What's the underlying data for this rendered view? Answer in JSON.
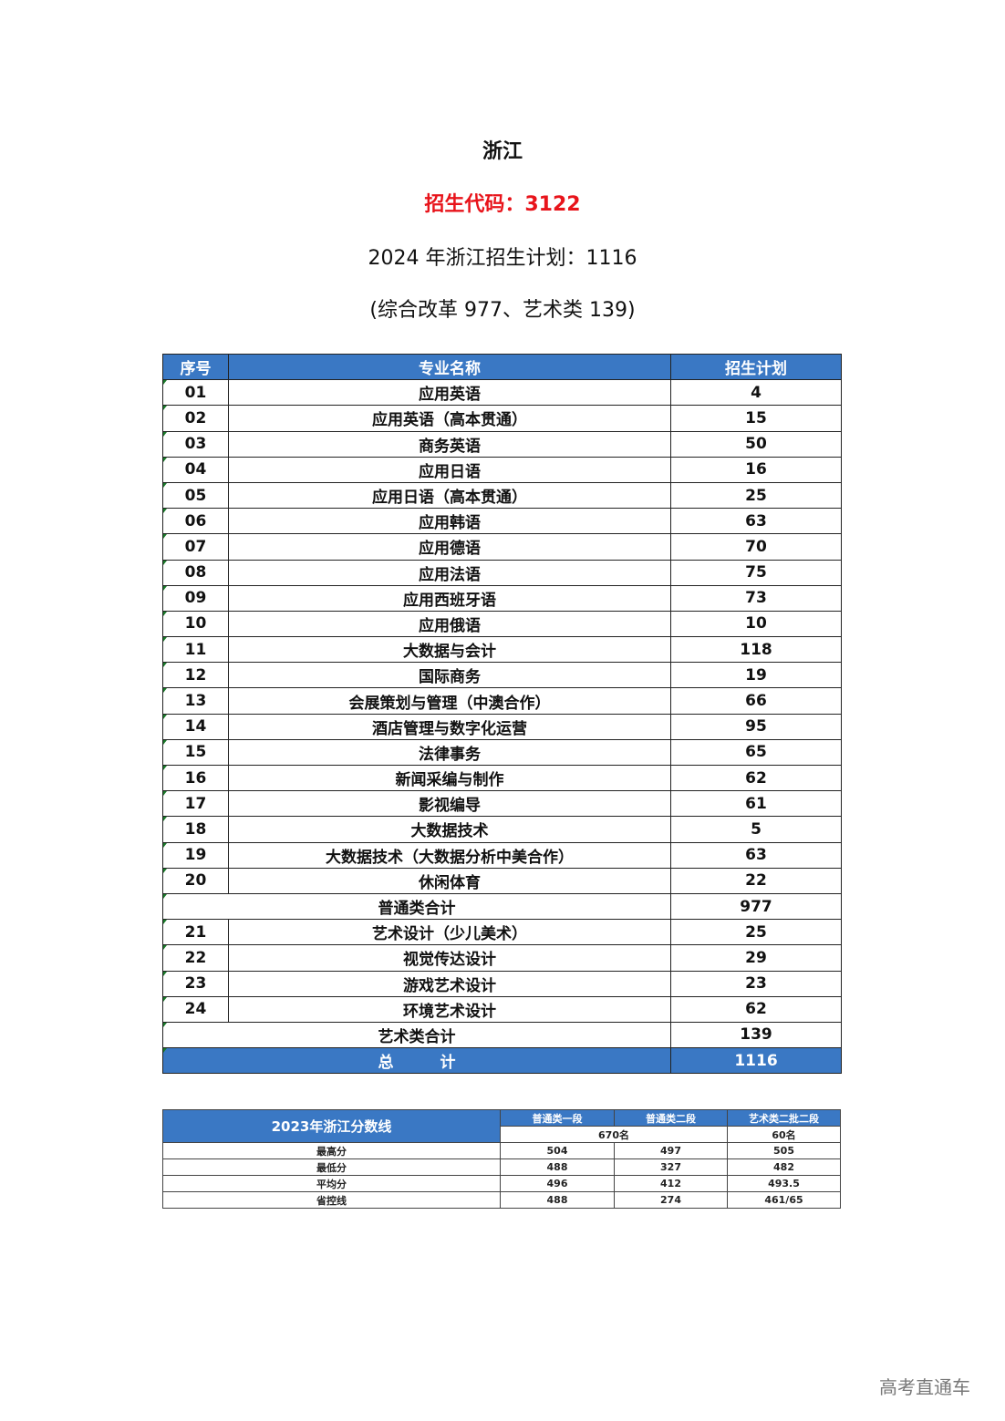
{
  "header": {
    "province": "浙江",
    "code_line": "招生代码：3122",
    "plan_line": "2024 年浙江招生计划：1116",
    "breakdown_line": "(综合改革 977、艺术类 139)"
  },
  "plan_table": {
    "columns": [
      "序号",
      "专业名称",
      "招生计划"
    ],
    "rows": [
      [
        "01",
        "应用英语",
        "4"
      ],
      [
        "02",
        "应用英语（高本贯通）",
        "15"
      ],
      [
        "03",
        "商务英语",
        "50"
      ],
      [
        "04",
        "应用日语",
        "16"
      ],
      [
        "05",
        "应用日语（高本贯通）",
        "25"
      ],
      [
        "06",
        "应用韩语",
        "63"
      ],
      [
        "07",
        "应用德语",
        "70"
      ],
      [
        "08",
        "应用法语",
        "75"
      ],
      [
        "09",
        "应用西班牙语",
        "73"
      ],
      [
        "10",
        "应用俄语",
        "10"
      ],
      [
        "11",
        "大数据与会计",
        "118"
      ],
      [
        "12",
        "国际商务",
        "19"
      ],
      [
        "13",
        "会展策划与管理（中澳合作）",
        "66"
      ],
      [
        "14",
        "酒店管理与数字化运营",
        "95"
      ],
      [
        "15",
        "法律事务",
        "65"
      ],
      [
        "16",
        "新闻采编与制作",
        "62"
      ],
      [
        "17",
        "影视编导",
        "61"
      ],
      [
        "18",
        "大数据技术",
        "5"
      ],
      [
        "19",
        "大数据技术（大数据分析中美合作）",
        "63"
      ],
      [
        "20",
        "休闲体育",
        "22"
      ]
    ],
    "subtotal_general": {
      "label": "普通类合计",
      "value": "977"
    },
    "art_rows": [
      [
        "21",
        "艺术设计（少儿美术）",
        "25"
      ],
      [
        "22",
        "视觉传达设计",
        "29"
      ],
      [
        "23",
        "游戏艺术设计",
        "23"
      ],
      [
        "24",
        "环境艺术设计",
        "62"
      ]
    ],
    "subtotal_art": {
      "label": "艺术类合计",
      "value": "139"
    },
    "total": {
      "label": "总　　　计",
      "value": "1116"
    }
  },
  "score_table": {
    "title": "2023年浙江分数线",
    "columns": [
      "普通类一段",
      "普通类二段",
      "艺术类二批二段"
    ],
    "counts": [
      "670名",
      "60名"
    ],
    "rows": [
      [
        "最高分",
        "504",
        "497",
        "505"
      ],
      [
        "最低分",
        "488",
        "327",
        "482"
      ],
      [
        "平均分",
        "496",
        "412",
        "493.5"
      ],
      [
        "省控线",
        "488",
        "274",
        "461/65"
      ]
    ]
  },
  "watermark": "高考直通车",
  "colors": {
    "header_blue": "#3a78c4",
    "code_red": "#e8141b"
  }
}
